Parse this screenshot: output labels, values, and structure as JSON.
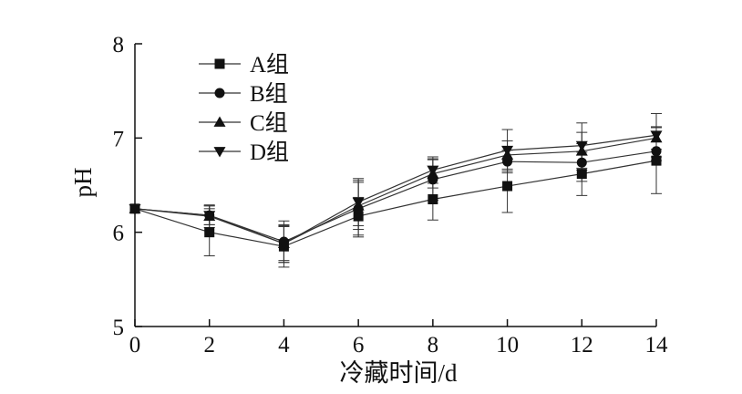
{
  "chart_data": {
    "type": "line",
    "title": "",
    "xlabel": "冷藏时间/d",
    "ylabel": "pH",
    "x": [
      0,
      2,
      4,
      6,
      8,
      10,
      12,
      14
    ],
    "xlim": [
      0,
      14
    ],
    "ylim": [
      5,
      8
    ],
    "x_ticks": [
      "0",
      "2",
      "4",
      "6",
      "8",
      "10",
      "12",
      "14"
    ],
    "y_ticks": [
      "5",
      "6",
      "7",
      "8"
    ],
    "grid": false,
    "legend_position": "top-left",
    "series": [
      {
        "name": "A组",
        "marker": "square",
        "values": [
          6.25,
          6.0,
          5.85,
          6.17,
          6.35,
          6.49,
          6.62,
          6.76
        ],
        "errors": [
          0.0,
          0.25,
          0.22,
          0.2,
          0.22,
          0.28,
          0.23,
          0.35
        ]
      },
      {
        "name": "B组",
        "marker": "circle",
        "values": [
          6.25,
          6.18,
          5.9,
          6.25,
          6.56,
          6.75,
          6.74,
          6.86
        ],
        "errors": [
          0.0,
          0.1,
          0.22,
          0.3,
          0.22,
          0.12,
          0.2,
          0.1
        ]
      },
      {
        "name": "C组",
        "marker": "triangle-up",
        "values": [
          6.25,
          6.17,
          5.88,
          6.28,
          6.62,
          6.82,
          6.86,
          7.0
        ],
        "errors": [
          0.0,
          0.12,
          0.2,
          0.25,
          0.15,
          0.15,
          0.2,
          0.12
        ]
      },
      {
        "name": "D组",
        "marker": "triangle-down",
        "values": [
          6.25,
          6.18,
          5.88,
          6.32,
          6.66,
          6.87,
          6.92,
          7.03
        ],
        "errors": [
          0.0,
          0.1,
          0.18,
          0.25,
          0.14,
          0.22,
          0.24,
          0.23
        ]
      }
    ],
    "colors": {
      "line": "#333333",
      "marker": "#111111",
      "axis": "#111111"
    }
  }
}
